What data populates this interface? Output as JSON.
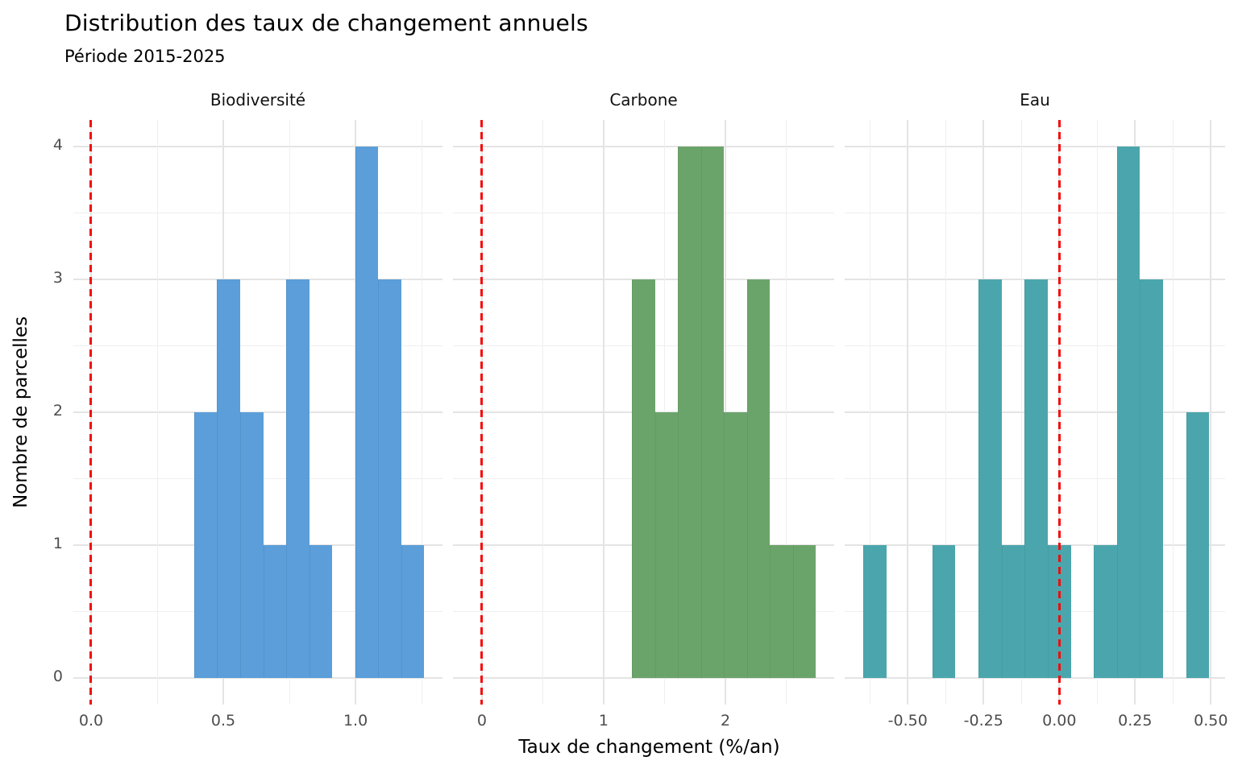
{
  "title": "Distribution des taux de changement annuels",
  "subtitle": "Période 2015-2025",
  "chart_data": {
    "type": "bar",
    "subtype": "faceted-histogram",
    "title": "Distribution des taux de changement annuels",
    "subtitle": "Période 2015-2025",
    "xlabel": "Taux de changement (%/an)",
    "ylabel": "Nombre de parcelles",
    "grid": "on",
    "legend": "none",
    "vline_color": "#f40b0b",
    "vline_style": "dashed",
    "y_axis": {
      "lim": [
        -0.2,
        4.2
      ],
      "ticks": [
        0,
        1,
        2,
        3,
        4
      ],
      "tick_labels": [
        "0",
        "1",
        "2",
        "3",
        "4"
      ],
      "minor": [
        0.5,
        1.5,
        2.5,
        3.5
      ]
    },
    "panels": [
      {
        "title": "Biodiversité",
        "color": "#5b9ed9",
        "vline": 0.0,
        "x_axis": {
          "lim": [
            -0.067,
            1.329
          ],
          "ticks": [
            0.0,
            0.5,
            1.0
          ],
          "tick_labels": [
            "0.0",
            "0.5",
            "1.0"
          ],
          "minor": [
            0.25,
            0.75,
            1.25
          ]
        },
        "bins": {
          "edges": [
            0.39,
            0.477,
            0.564,
            0.651,
            0.738,
            0.825,
            0.912,
            0.999,
            1.086,
            1.173,
            1.26
          ],
          "counts": [
            2,
            3,
            2,
            1,
            3,
            1,
            0,
            4,
            3,
            1
          ]
        },
        "n_total": 20
      },
      {
        "title": "Carbone",
        "color": "#6ba46a",
        "vline": 0.0,
        "x_axis": {
          "lim": [
            -0.238,
            2.894
          ],
          "ticks": [
            0,
            1,
            2
          ],
          "tick_labels": [
            "0",
            "1",
            "2"
          ],
          "minor": [
            0.5,
            1.5,
            2.5
          ]
        },
        "bins": {
          "edges": [
            1.232,
            1.421,
            1.61,
            1.799,
            1.988,
            2.177,
            2.366,
            2.555,
            2.744
          ],
          "counts": [
            3,
            2,
            4,
            4,
            2,
            3,
            1,
            1
          ]
        },
        "n_total": 20
      },
      {
        "title": "Eau",
        "color": "#4aa6ac",
        "vline": 0.0,
        "x_axis": {
          "lim": [
            -0.708,
            0.547
          ],
          "ticks": [
            -0.5,
            -0.25,
            0.0,
            0.25,
            0.5
          ],
          "tick_labels": [
            "-0.50",
            "-0.25",
            "0.00",
            "0.25",
            "0.50"
          ],
          "minor": [
            -0.625,
            -0.375,
            -0.125,
            0.125,
            0.375
          ]
        },
        "bins": {
          "edges": [
            -0.647,
            -0.571,
            -0.495,
            -0.419,
            -0.343,
            -0.267,
            -0.19,
            -0.114,
            -0.038,
            0.038,
            0.114,
            0.19,
            0.266,
            0.342,
            0.419,
            0.495
          ],
          "counts": [
            1,
            0,
            0,
            1,
            0,
            3,
            1,
            3,
            1,
            0,
            1,
            4,
            3,
            0,
            2
          ]
        },
        "n_total": 20
      }
    ]
  }
}
